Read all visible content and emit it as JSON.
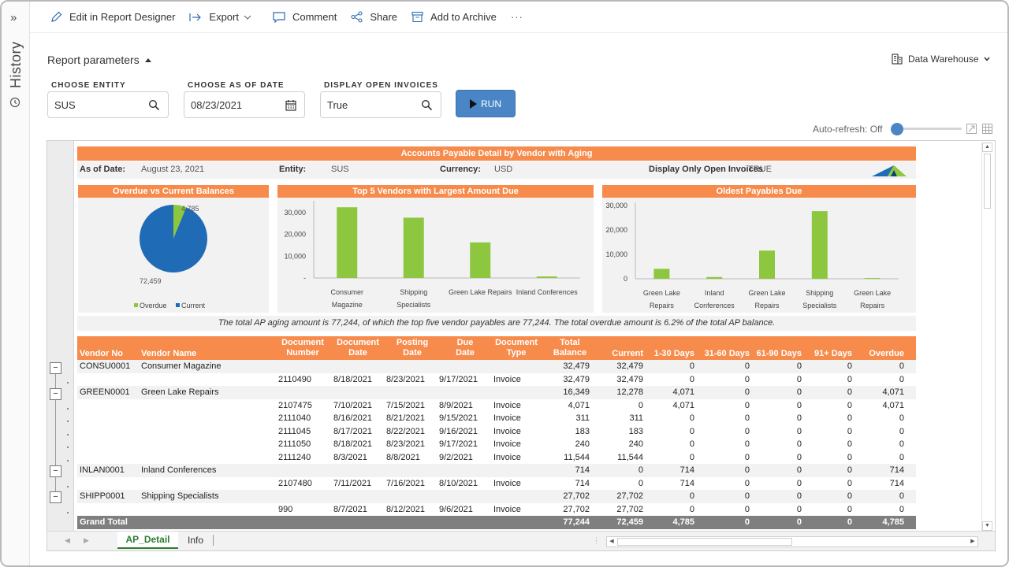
{
  "sidebar": {
    "toggle_label": "»",
    "history_label": "History"
  },
  "toolbar": {
    "edit_label": "Edit in Report Designer",
    "export_label": "Export",
    "comment_label": "Comment",
    "share_label": "Share",
    "archive_label": "Add to Archive",
    "more_label": "···"
  },
  "params": {
    "title": "Report parameters",
    "datasource": "Data Warehouse",
    "entity_label": "CHOOSE ENTITY",
    "entity_value": "SUS",
    "date_label": "CHOOSE AS OF DATE",
    "date_value": "08/23/2021",
    "open_label": "DISPLAY OPEN INVOICES",
    "open_value": "True",
    "run_label": "RUN",
    "autorefresh_label": "Auto-refresh: Off"
  },
  "report": {
    "title": "Accounts Payable Detail by Vendor with Aging",
    "meta": {
      "asof_label": "As of Date:",
      "asof_value": "August 23, 2021",
      "entity_label": "Entity:",
      "entity_value": "SUS",
      "currency_label": "Currency:",
      "currency_value": "USD",
      "open_label": "Display Only Open Invoices",
      "open_value": "TRUE"
    },
    "summary": "The total AP aging amount is 77,244, of which the top five vendor payables are 77,244. The total overdue amount is 6.2% of the total AP balance."
  },
  "chart_data": [
    {
      "type": "pie",
      "title": "Overdue vs Current Balances",
      "labels": [
        "Overdue",
        "Current"
      ],
      "values": [
        4785,
        72459
      ],
      "data_labels": [
        "4,785",
        "72,459"
      ],
      "colors": [
        "#8dc63f",
        "#1f6bb5"
      ]
    },
    {
      "type": "bar",
      "title": "Top 5 Vendors with Largest Amount Due",
      "categories": [
        "Consumer Magazine",
        "Shipping Specialists",
        "Green Lake Repairs",
        "Inland Conferences"
      ],
      "values": [
        32479,
        27702,
        16349,
        714
      ],
      "ylim": [
        0,
        34000
      ],
      "yticks": [
        "30,000",
        "20,000",
        "10,000",
        "-"
      ],
      "color": "#8dc63f"
    },
    {
      "type": "bar",
      "title": "Oldest Payables Due",
      "categories": [
        "Green Lake Repairs",
        "Inland Conferences",
        "Green Lake Repairs",
        "Shipping Specialists",
        "Green Lake Repairs"
      ],
      "values": [
        4071,
        714,
        11544,
        27702,
        311
      ],
      "ylim": [
        0,
        30000
      ],
      "yticks": [
        "30,000",
        "20,000",
        "10,000",
        "0"
      ],
      "color": "#8dc63f"
    }
  ],
  "table": {
    "headers": {
      "vendor_no": "Vendor No",
      "vendor_name": "Vendor Name",
      "doc_no_1": "Document",
      "doc_no_2": "Number",
      "doc_date_1": "Document",
      "doc_date_2": "Date",
      "post_1": "Posting",
      "post_2": "Date",
      "due_1": "Due",
      "due_2": "Date",
      "type_1": "Document",
      "type_2": "Type",
      "total_1": "Total",
      "total_2": "Balance",
      "current": "Current",
      "d1": "1-30 Days",
      "d31": "31-60 Days",
      "d61": "61-90 Days",
      "d91": "91+ Days",
      "overdue": "Overdue"
    },
    "rows": [
      {
        "g": true,
        "vno": "CONSU0001",
        "vname": "Consumer Magazine",
        "doc": "",
        "ddate": "",
        "pdate": "",
        "due": "",
        "type": "",
        "total": "32,479",
        "cur": "32,479",
        "a": "0",
        "b": "0",
        "c": "0",
        "d": "0",
        "o": "0"
      },
      {
        "g": false,
        "vno": "",
        "vname": "",
        "doc": "2110490",
        "ddate": "8/18/2021",
        "pdate": "8/23/2021",
        "due": "9/17/2021",
        "type": "Invoice",
        "total": "32,479",
        "cur": "32,479",
        "a": "0",
        "b": "0",
        "c": "0",
        "d": "0",
        "o": "0"
      },
      {
        "g": true,
        "vno": "GREEN0001",
        "vname": "Green Lake Repairs",
        "doc": "",
        "ddate": "",
        "pdate": "",
        "due": "",
        "type": "",
        "total": "16,349",
        "cur": "12,278",
        "a": "4,071",
        "b": "0",
        "c": "0",
        "d": "0",
        "o": "4,071"
      },
      {
        "g": false,
        "vno": "",
        "vname": "",
        "doc": "2107475",
        "ddate": "7/10/2021",
        "pdate": "7/15/2021",
        "due": "8/9/2021",
        "type": "Invoice",
        "total": "4,071",
        "cur": "0",
        "a": "4,071",
        "b": "0",
        "c": "0",
        "d": "0",
        "o": "4,071"
      },
      {
        "g": false,
        "vno": "",
        "vname": "",
        "doc": "2111040",
        "ddate": "8/16/2021",
        "pdate": "8/21/2021",
        "due": "9/15/2021",
        "type": "Invoice",
        "total": "311",
        "cur": "311",
        "a": "0",
        "b": "0",
        "c": "0",
        "d": "0",
        "o": "0"
      },
      {
        "g": false,
        "vno": "",
        "vname": "",
        "doc": "2111045",
        "ddate": "8/17/2021",
        "pdate": "8/22/2021",
        "due": "9/16/2021",
        "type": "Invoice",
        "total": "183",
        "cur": "183",
        "a": "0",
        "b": "0",
        "c": "0",
        "d": "0",
        "o": "0"
      },
      {
        "g": false,
        "vno": "",
        "vname": "",
        "doc": "2111050",
        "ddate": "8/18/2021",
        "pdate": "8/23/2021",
        "due": "9/17/2021",
        "type": "Invoice",
        "total": "240",
        "cur": "240",
        "a": "0",
        "b": "0",
        "c": "0",
        "d": "0",
        "o": "0"
      },
      {
        "g": false,
        "vno": "",
        "vname": "",
        "doc": "2111240",
        "ddate": "8/3/2021",
        "pdate": "8/8/2021",
        "due": "9/2/2021",
        "type": "Invoice",
        "total": "11,544",
        "cur": "11,544",
        "a": "0",
        "b": "0",
        "c": "0",
        "d": "0",
        "o": "0"
      },
      {
        "g": true,
        "vno": "INLAN0001",
        "vname": "Inland Conferences",
        "doc": "",
        "ddate": "",
        "pdate": "",
        "due": "",
        "type": "",
        "total": "714",
        "cur": "0",
        "a": "714",
        "b": "0",
        "c": "0",
        "d": "0",
        "o": "714"
      },
      {
        "g": false,
        "vno": "",
        "vname": "",
        "doc": "2107480",
        "ddate": "7/11/2021",
        "pdate": "7/16/2021",
        "due": "8/10/2021",
        "type": "Invoice",
        "total": "714",
        "cur": "0",
        "a": "714",
        "b": "0",
        "c": "0",
        "d": "0",
        "o": "714"
      },
      {
        "g": true,
        "vno": "SHIPP0001",
        "vname": "Shipping Specialists",
        "doc": "",
        "ddate": "",
        "pdate": "",
        "due": "",
        "type": "",
        "total": "27,702",
        "cur": "27,702",
        "a": "0",
        "b": "0",
        "c": "0",
        "d": "0",
        "o": "0"
      },
      {
        "g": false,
        "vno": "",
        "vname": "",
        "doc": "990",
        "ddate": "8/7/2021",
        "pdate": "8/12/2021",
        "due": "9/6/2021",
        "type": "Invoice",
        "total": "27,702",
        "cur": "27,702",
        "a": "0",
        "b": "0",
        "c": "0",
        "d": "0",
        "o": "0"
      }
    ],
    "grand": {
      "label": "Grand Total",
      "total": "77,244",
      "cur": "72,459",
      "a": "4,785",
      "b": "0",
      "c": "0",
      "d": "0",
      "o": "4,785"
    }
  },
  "outline": {
    "collapse_symbol": "−"
  },
  "tabs": {
    "active": "AP_Detail",
    "other": "Info"
  }
}
